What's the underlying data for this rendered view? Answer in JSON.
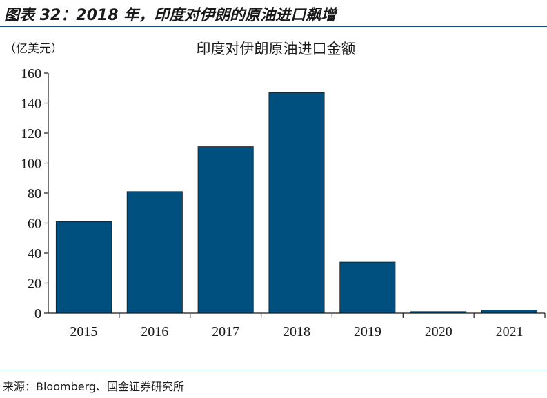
{
  "figure": {
    "title": "图表 32：2018 年，印度对伊朗的原油进口飙增",
    "source": "来源：Bloomberg、国金证券研究所"
  },
  "chart_data": {
    "type": "bar",
    "title": "印度对伊朗原油进口金额",
    "unit_label": "（亿美元）",
    "categories": [
      "2015",
      "2016",
      "2017",
      "2018",
      "2019",
      "2020",
      "2021"
    ],
    "values": [
      61,
      81,
      111,
      147,
      34,
      1,
      2
    ],
    "yticks": [
      0,
      20,
      40,
      60,
      80,
      100,
      120,
      140,
      160
    ],
    "ylim": [
      0,
      160
    ],
    "grid": false,
    "bar_color": "#00507f"
  }
}
